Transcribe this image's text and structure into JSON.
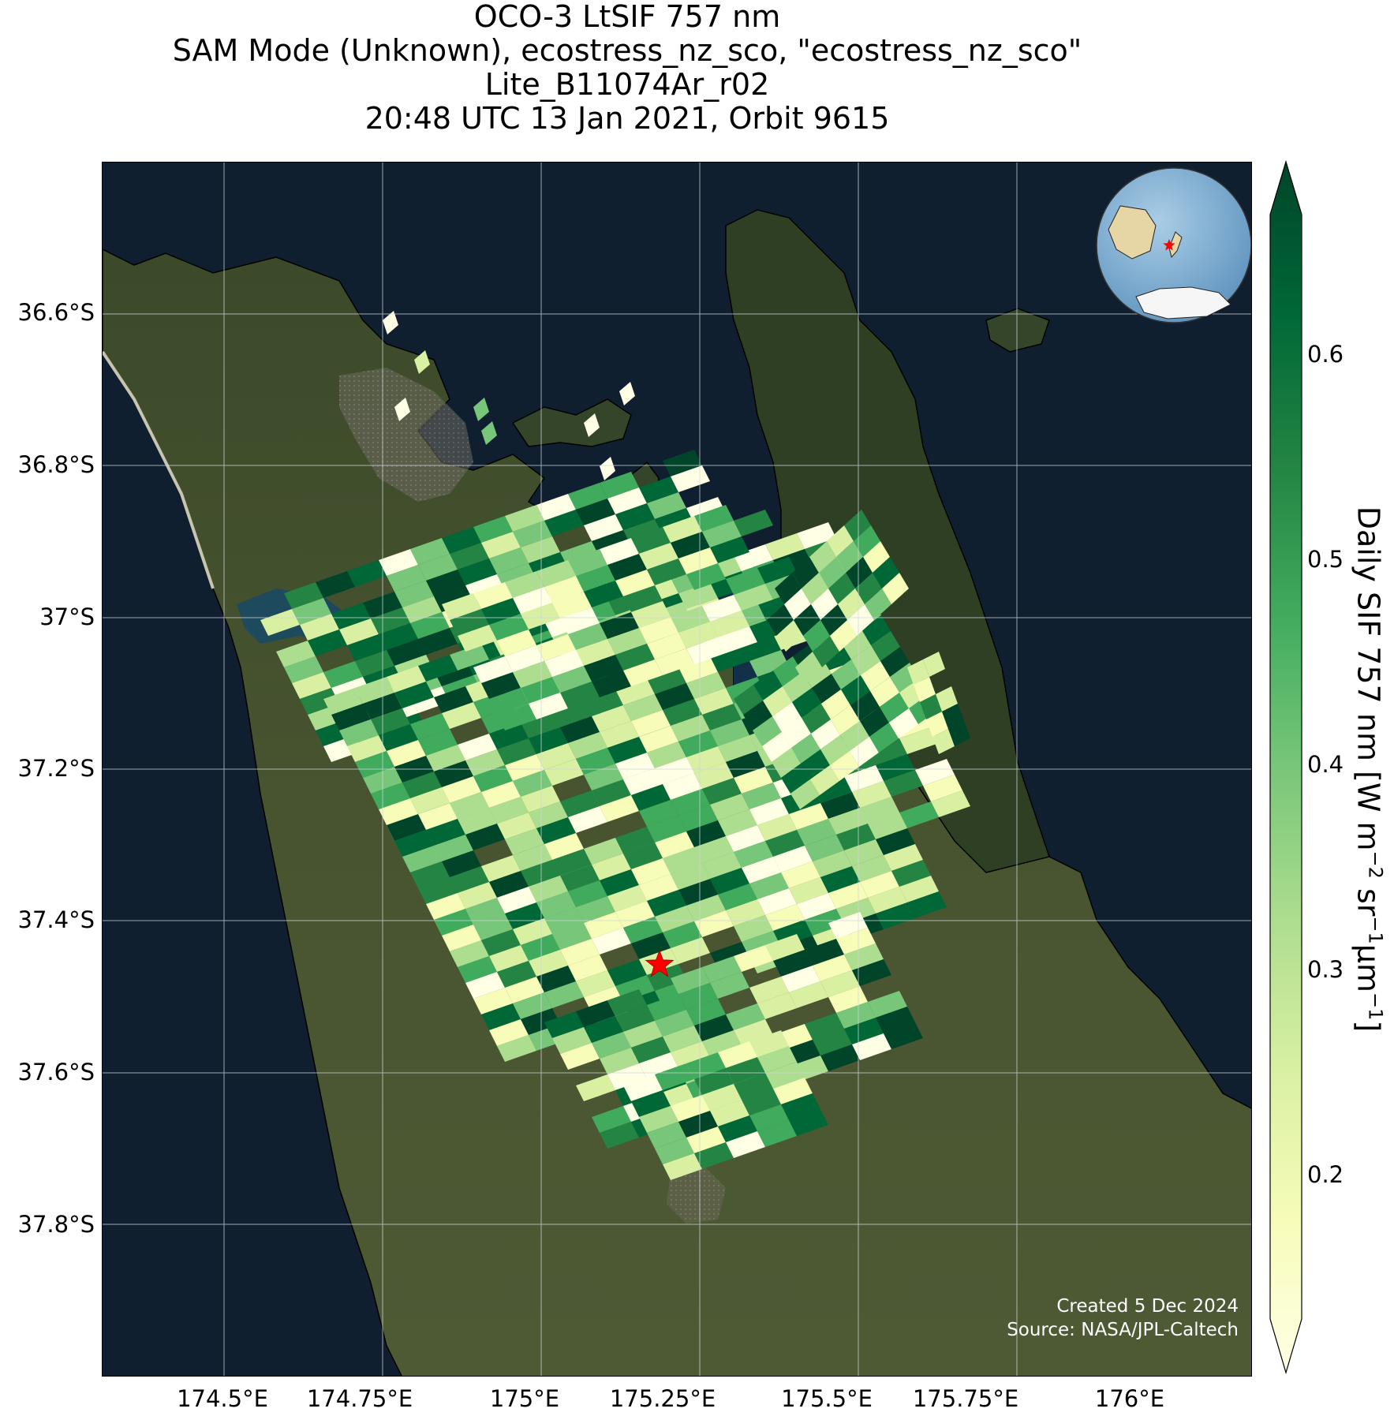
{
  "title": {
    "line1": "OCO-3 LtSIF 757 nm",
    "line2": "SAM Mode (Unknown), ecostress_nz_sco, \"ecostress_nz_sco\"",
    "line3": "Lite_B11074Ar_r02",
    "line4": "20:48 UTC 13 Jan 2021, Orbit 9615"
  },
  "map": {
    "lon_range": [
      174.25,
      176.35
    ],
    "lat_range": [
      -37.95,
      -36.4
    ],
    "x_ticks": [
      "174.5°E",
      "174.75°E",
      "175°E",
      "175.25°E",
      "175.5°E",
      "175.75°E",
      "176°E"
    ],
    "y_ticks": [
      "36.6°S",
      "36.8°S",
      "37°S",
      "37.2°S",
      "37.4°S",
      "37.6°S",
      "37.8°S"
    ],
    "grid": true,
    "basemap": "satellite imagery",
    "target_marker": "red star",
    "inset": "globe locator (top-right) with red star over New Zealand"
  },
  "colorbar": {
    "label_main": "Daily SIF 757 nm [W m",
    "label_exp1": "−2",
    "label_mid": " sr",
    "label_exp2": "−1",
    "label_mid2": "μm",
    "label_exp3": "−1",
    "label_end": "]",
    "colormap": "YlGn",
    "ticks": [
      "0.2",
      "0.3",
      "0.4",
      "0.5",
      "0.6"
    ],
    "extend": "both",
    "colors": [
      "#ffffe5",
      "#f7fcb9",
      "#d9f0a3",
      "#addd8e",
      "#78c679",
      "#41ab5d",
      "#238443",
      "#006837",
      "#004529"
    ]
  },
  "credit": {
    "line1": "Created 5 Dec 2024",
    "line2": "Source: NASA/JPL-Caltech"
  }
}
